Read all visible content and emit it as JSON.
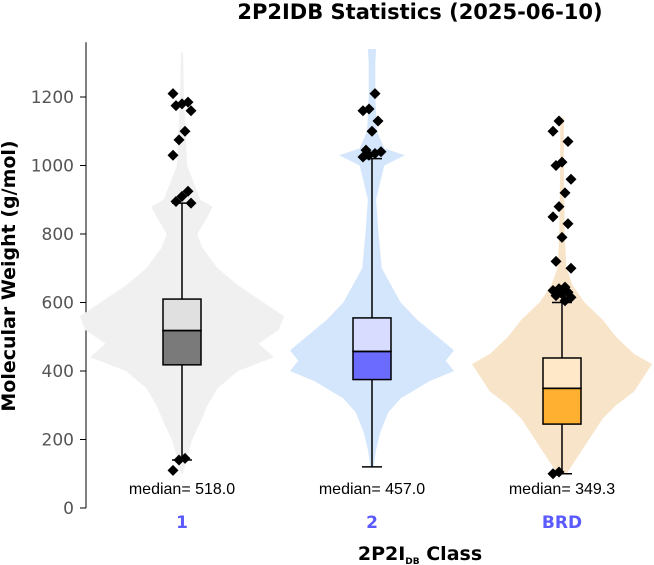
{
  "chart_data": {
    "type": "violin-box",
    "title": "2P2IDB Statistics (2025-06-10)",
    "ylabel": "Molecular Weight (g/mol)",
    "xlabel_main": "2P2I",
    "xlabel_subscript": "DB",
    "xlabel_suffix": " Class",
    "ylim": [
      0,
      1360
    ],
    "yticks": [
      "0",
      "200",
      "400",
      "600",
      "800",
      "1000",
      "1200"
    ],
    "tick_label_color": "#5a5aff",
    "grid": false,
    "groups": [
      {
        "category": "1",
        "violin_color": "#f0f0f0",
        "box_upper_color": "#e0e0e0",
        "box_lower_color": "#7a7a7a",
        "median": 518.0,
        "q1": 418,
        "q3": 610,
        "whisker_low": 140,
        "whisker_high": 890,
        "median_label": "median= 518.0",
        "violin_profile": [
          [
            1330,
            0.01
          ],
          [
            1200,
            0.02
          ],
          [
            1000,
            0.05
          ],
          [
            900,
            0.18
          ],
          [
            880,
            0.3
          ],
          [
            850,
            0.25
          ],
          [
            800,
            0.15
          ],
          [
            760,
            0.2
          ],
          [
            700,
            0.35
          ],
          [
            650,
            0.55
          ],
          [
            600,
            0.8
          ],
          [
            560,
            1.0
          ],
          [
            520,
            0.95
          ],
          [
            480,
            0.75
          ],
          [
            440,
            0.9
          ],
          [
            400,
            0.55
          ],
          [
            350,
            0.35
          ],
          [
            300,
            0.25
          ],
          [
            250,
            0.18
          ],
          [
            200,
            0.1
          ],
          [
            140,
            0.04
          ],
          [
            100,
            0.01
          ]
        ],
        "outliers": [
          110,
          140,
          145,
          890,
          895,
          910,
          925,
          1030,
          1075,
          1100,
          1160,
          1175,
          1180,
          1185,
          1210
        ]
      },
      {
        "category": "2",
        "violin_color": "#d4e6fb",
        "box_upper_color": "#d8dcff",
        "box_lower_color": "#6b6bff",
        "median": 457.0,
        "q1": 375,
        "q3": 555,
        "whisker_low": 120,
        "whisker_high": 1020,
        "median_label": "median= 457.0",
        "violin_profile": [
          [
            1340,
            0.05
          ],
          [
            1300,
            0.04
          ],
          [
            1200,
            0.04
          ],
          [
            1100,
            0.06
          ],
          [
            1050,
            0.15
          ],
          [
            1030,
            0.4
          ],
          [
            1000,
            0.15
          ],
          [
            900,
            0.05
          ],
          [
            800,
            0.08
          ],
          [
            700,
            0.12
          ],
          [
            600,
            0.35
          ],
          [
            550,
            0.55
          ],
          [
            500,
            0.8
          ],
          [
            460,
            1.0
          ],
          [
            430,
            0.9
          ],
          [
            400,
            1.0
          ],
          [
            370,
            0.7
          ],
          [
            320,
            0.35
          ],
          [
            280,
            0.2
          ],
          [
            220,
            0.1
          ],
          [
            170,
            0.05
          ],
          [
            120,
            0.02
          ]
        ],
        "outliers": [
          1025,
          1030,
          1035,
          1040,
          1045,
          1100,
          1130,
          1160,
          1165,
          1210
        ]
      },
      {
        "category": "BRD",
        "violin_color": "#f8e4c8",
        "box_upper_color": "#ffe8c8",
        "box_lower_color": "#ffb030",
        "median": 349.3,
        "q1": 245,
        "q3": 438,
        "whisker_low": 100,
        "whisker_high": 600,
        "median_label": "median= 349.3",
        "violin_profile": [
          [
            1140,
            0.02
          ],
          [
            1000,
            0.02
          ],
          [
            800,
            0.03
          ],
          [
            700,
            0.05
          ],
          [
            650,
            0.12
          ],
          [
            600,
            0.25
          ],
          [
            550,
            0.45
          ],
          [
            500,
            0.6
          ],
          [
            450,
            0.8
          ],
          [
            420,
            1.0
          ],
          [
            380,
            0.9
          ],
          [
            340,
            0.8
          ],
          [
            300,
            0.6
          ],
          [
            260,
            0.45
          ],
          [
            220,
            0.35
          ],
          [
            180,
            0.25
          ],
          [
            140,
            0.15
          ],
          [
            100,
            0.05
          ]
        ],
        "outliers": [
          100,
          105,
          605,
          615,
          620,
          625,
          630,
          635,
          640,
          645,
          700,
          720,
          790,
          830,
          850,
          880,
          920,
          960,
          1000,
          1010,
          1070,
          1100,
          1130
        ]
      }
    ]
  }
}
